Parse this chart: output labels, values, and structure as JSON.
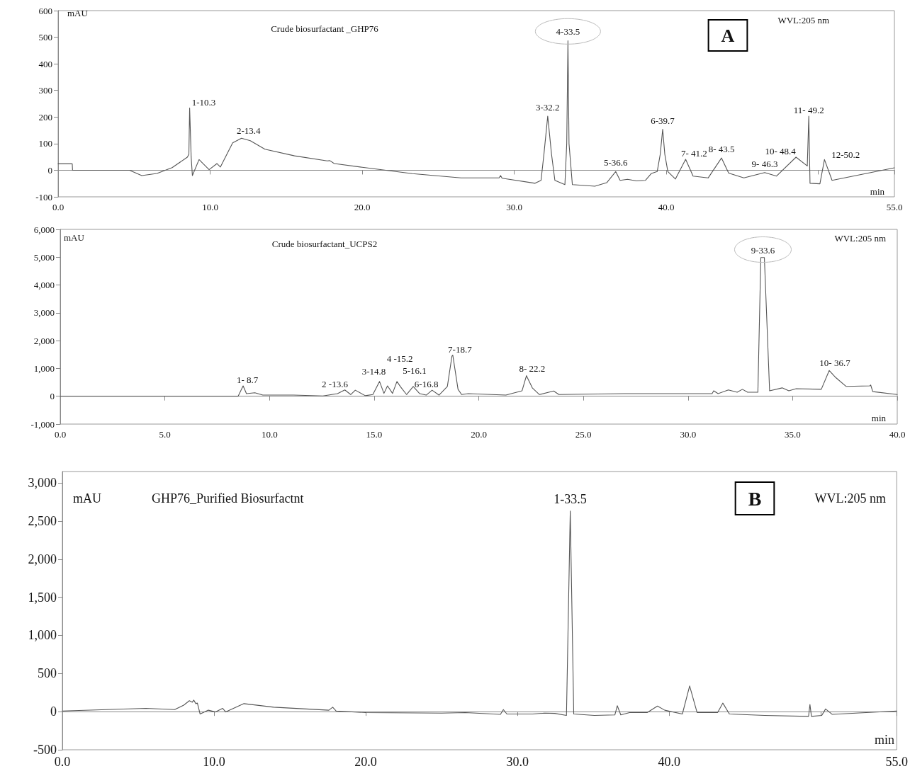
{
  "chart_data": [
    {
      "type": "line",
      "title": "Crude biosurfactant _GHP76",
      "xlabel": "min",
      "ylabel": "mAU",
      "xlim": [
        0,
        55
      ],
      "xticks": [
        {
          "value": 0,
          "label": "0.0"
        },
        {
          "value": 10,
          "label": "10.0"
        },
        {
          "value": 20,
          "label": "20.0"
        },
        {
          "value": 30,
          "label": "30.0"
        },
        {
          "value": 40,
          "label": "40.0"
        },
        {
          "value": 50,
          "label": null
        },
        {
          "value": 55,
          "label": "55.0"
        }
      ],
      "ylim": [
        -100,
        600
      ],
      "yticks": [
        -100,
        0,
        100,
        200,
        300,
        400,
        500,
        600
      ],
      "color": "#555555",
      "x": [
        0,
        0.93,
        0.95,
        4.7,
        5.5,
        6.5,
        7.5,
        8.5,
        8.6,
        8.65,
        8.75,
        8.83,
        9.27,
        9.93,
        10.45,
        10.67,
        11.48,
        12.06,
        12.64,
        13.6,
        15.55,
        17.7,
        17.87,
        18.16,
        20,
        23.3,
        26.5,
        29.0,
        29.1,
        29.2,
        31.37,
        31.76,
        31.95,
        32.2,
        32.45,
        32.67,
        33.33,
        33.45,
        33.53,
        33.6,
        33.82,
        35.3,
        36.08,
        36.67,
        36.96,
        37.45,
        38.04,
        38.63,
        39.02,
        39.4,
        39.6,
        39.76,
        39.9,
        40.1,
        40.6,
        41.27,
        41.76,
        42.75,
        43.63,
        44.1,
        45.1,
        46.47,
        47.25,
        48.53,
        49.27,
        49.37,
        49.45,
        50.1,
        50.4,
        50.9,
        55
      ],
      "values": [
        24,
        24,
        0,
        0,
        -20,
        -12,
        10,
        49,
        60,
        234,
        50,
        -20,
        40,
        2,
        25,
        12,
        103,
        120,
        111,
        79,
        54,
        35,
        36,
        25,
        11,
        -13,
        -29,
        -29,
        -20,
        -30,
        -49,
        -38,
        60,
        203,
        60,
        -38,
        -54,
        100,
        487,
        100,
        -54,
        -60,
        -47,
        -5,
        -38,
        -34,
        -40,
        -38,
        -12,
        -5,
        60,
        154,
        60,
        -5,
        -33,
        41,
        -22,
        -29,
        46,
        -11,
        -29,
        -9,
        -22,
        49,
        16,
        203,
        -49,
        -51,
        40,
        -38,
        9
      ],
      "annotations": [
        "WVL:205 nm",
        "A",
        {
          "text": "1-10.3",
          "x": 8.65,
          "y": 234
        },
        {
          "text": "2-13.4",
          "x": 12.06,
          "y": 120
        },
        {
          "text": "3-32.2",
          "x": 32.2,
          "y": 203
        },
        {
          "text": "4-33.5",
          "x": 33.53,
          "y": 487
        },
        {
          "text": "5-36.6",
          "x": 36.67,
          "y": -5
        },
        {
          "text": "6-39.7",
          "x": 39.76,
          "y": 154
        },
        {
          "text": "7- 41.2",
          "x": 41.27,
          "y": 41
        },
        {
          "text": "8- 43.5",
          "x": 43.63,
          "y": 46
        },
        {
          "text": "9- 46.3",
          "x": 46.47,
          "y": -9
        },
        {
          "text": "10- 48.4",
          "x": 48.53,
          "y": 49
        },
        {
          "text": "11- 49.2",
          "x": 49.37,
          "y": 203
        },
        {
          "text": "12-50.2",
          "x": 50.4,
          "y": 40
        }
      ]
    },
    {
      "type": "line",
      "title": "Crude biosurfactant_UCPS2",
      "xlabel": "min",
      "ylabel": "mAU",
      "xlim": [
        0,
        40
      ],
      "xticks": [
        {
          "value": 0,
          "label": "0.0"
        },
        {
          "value": 5,
          "label": "5.0"
        },
        {
          "value": 10,
          "label": "10.0"
        },
        {
          "value": 15,
          "label": "15.0"
        },
        {
          "value": 20,
          "label": "20.0"
        },
        {
          "value": 25,
          "label": "25.0"
        },
        {
          "value": 30,
          "label": "30.0"
        },
        {
          "value": 35,
          "label": "35.0"
        },
        {
          "value": 40,
          "label": "40.0"
        }
      ],
      "ylim": [
        -1000,
        6000
      ],
      "yticks": [
        {
          "value": -1000,
          "label": "-1,000"
        },
        0,
        {
          "value": 1000,
          "label": "1,000"
        },
        {
          "value": 2000,
          "label": "2,000"
        },
        {
          "value": 3000,
          "label": "3,000"
        },
        {
          "value": 4000,
          "label": "4,000"
        },
        {
          "value": 5000,
          "label": "5,000"
        },
        {
          "value": 6000,
          "label": "6,000"
        }
      ],
      "color": "#555555",
      "x": [
        0,
        8.5,
        8.74,
        8.9,
        9.3,
        9.68,
        11.15,
        12.55,
        13.25,
        13.6,
        13.88,
        14.1,
        14.58,
        14.94,
        15.26,
        15.47,
        15.64,
        15.88,
        16.09,
        16.27,
        16.55,
        16.87,
        17.18,
        17.49,
        17.77,
        18.1,
        18.5,
        18.72,
        18.76,
        19.01,
        19.18,
        19.5,
        21.3,
        22.07,
        22.28,
        22.56,
        22.9,
        23.58,
        23.83,
        26.93,
        31.15,
        31.23,
        31.44,
        31.93,
        32.35,
        32.6,
        32.85,
        33.34,
        33.48,
        33.65,
        33.9,
        34.5,
        34.82,
        35.17,
        36.37,
        36.75,
        37.07,
        37.56,
        38.69,
        38.73,
        38.83,
        40
      ],
      "values": [
        0,
        0,
        375,
        94,
        125,
        42,
        42,
        10,
        94,
        229,
        62,
        219,
        21,
        62,
        531,
        104,
        375,
        104,
        531,
        333,
        62,
        354,
        94,
        42,
        219,
        42,
        354,
        1448,
        1479,
        250,
        62,
        94,
        42,
        198,
        740,
        302,
        62,
        188,
        62,
        94,
        94,
        198,
        94,
        229,
        146,
        250,
        146,
        146,
        4990,
        4990,
        198,
        302,
        198,
        271,
        250,
        927,
        667,
        354,
        375,
        406,
        167,
        62
      ],
      "annotations": [
        "WVL:205 nm",
        {
          "text": "1- 8.7",
          "x": 8.74,
          "y": 375
        },
        {
          "text": "2 -13.6",
          "x": 13.6,
          "y": 229
        },
        {
          "text": "3-14.8",
          "x": 15.26,
          "y": 531
        },
        {
          "text": "4 -15.2",
          "x": 16.09,
          "y": 531
        },
        {
          "text": "5-16.1",
          "x": 16.87,
          "y": 354
        },
        {
          "text": "6-16.8",
          "x": 17.77,
          "y": 219
        },
        {
          "text": "7-18.7",
          "x": 18.76,
          "y": 1479
        },
        {
          "text": "8- 22.2",
          "x": 22.28,
          "y": 740
        },
        {
          "text": "9-33.6",
          "x": 33.48,
          "y": 4990
        },
        {
          "text": "10- 36.7",
          "x": 36.75,
          "y": 927
        }
      ]
    },
    {
      "type": "line",
      "title": "GHP76_Purified Biosurfactnt",
      "xlabel": "min",
      "ylabel": "mAU",
      "xlim": [
        0,
        55
      ],
      "xticks": [
        {
          "value": 0,
          "label": "0.0"
        },
        {
          "value": 10,
          "label": "10.0"
        },
        {
          "value": 20,
          "label": "20.0"
        },
        {
          "value": 30,
          "label": "30.0"
        },
        {
          "value": 40,
          "label": "40.0"
        },
        {
          "value": 50,
          "label": null
        },
        {
          "value": 55,
          "label": "55.0"
        }
      ],
      "ylim": [
        -500,
        3150
      ],
      "yticks": [
        -500,
        0,
        500,
        {
          "value": 1000,
          "label": "1,000"
        },
        {
          "value": 1500,
          "label": "1,500"
        },
        {
          "value": 2000,
          "label": "2,000"
        },
        {
          "value": 2500,
          "label": "2,500"
        },
        {
          "value": 3000,
          "label": "3,000"
        }
      ],
      "color": "#555555",
      "x": [
        0,
        5.5,
        7.4,
        8.0,
        8.37,
        8.56,
        8.66,
        8.8,
        8.9,
        9.08,
        9.62,
        10.1,
        10.57,
        10.77,
        11.97,
        13.93,
        17.57,
        17.82,
        18.05,
        20,
        25.0,
        26.56,
        28.88,
        29.07,
        29.3,
        31.0,
        31.78,
        32.46,
        33.23,
        33.48,
        33.71,
        35.07,
        36.42,
        36.58,
        36.81,
        37.39,
        38.55,
        39.23,
        39.71,
        40.87,
        41.35,
        41.84,
        43.19,
        43.54,
        43.97,
        46.29,
        49.19,
        49.28,
        49.38,
        50.06,
        50.31,
        50.74,
        55
      ],
      "values": [
        8,
        43,
        27,
        85,
        143,
        124,
        151,
        105,
        112,
        -31,
        19,
        -4,
        43,
        -4,
        105,
        58,
        19,
        58,
        8,
        -12,
        -19,
        -12,
        -35,
        27,
        -31,
        -31,
        -19,
        -23,
        -50,
        2632,
        -31,
        -50,
        -43,
        78,
        -43,
        -12,
        -12,
        74,
        19,
        -31,
        337,
        -12,
        -12,
        112,
        -31,
        -50,
        -62,
        93,
        -62,
        -50,
        35,
        -35,
        8
      ],
      "annotations": [
        "WVL:205 nm",
        "B",
        {
          "text": "1-33.5",
          "x": 33.48,
          "y": 2632
        }
      ]
    }
  ]
}
